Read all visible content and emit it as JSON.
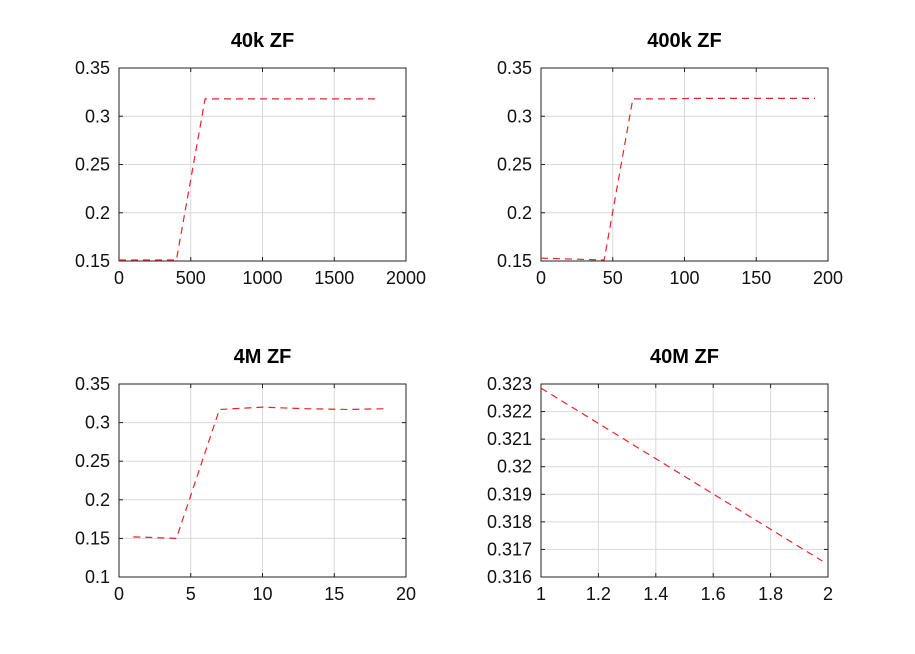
{
  "chart_data": [
    {
      "type": "line",
      "title": "40k ZF",
      "xlim": [
        0,
        2000
      ],
      "ylim": [
        0.15,
        0.35
      ],
      "xticks": [
        0,
        500,
        1000,
        1500,
        2000
      ],
      "xtick_labels": [
        "0",
        "500",
        "1000",
        "1500",
        "2000"
      ],
      "yticks": [
        0.15,
        0.2,
        0.25,
        0.3,
        0.35
      ],
      "ytick_labels": [
        "0.15",
        "0.2",
        "0.25",
        "0.3",
        "0.35"
      ],
      "grid": true,
      "series": [
        {
          "color": "#e8242b",
          "style": "dashed",
          "x": [
            0,
            400,
            600,
            800,
            1000,
            1200,
            1400,
            1600,
            1800
          ],
          "y": [
            0.151,
            0.151,
            0.318,
            0.318,
            0.318,
            0.318,
            0.318,
            0.318,
            0.318
          ]
        }
      ]
    },
    {
      "type": "line",
      "title": "400k ZF",
      "xlim": [
        0,
        200
      ],
      "ylim": [
        0.15,
        0.35
      ],
      "xticks": [
        0,
        50,
        100,
        150,
        200
      ],
      "xtick_labels": [
        "0",
        "50",
        "100",
        "150",
        "200"
      ],
      "yticks": [
        0.15,
        0.2,
        0.25,
        0.3,
        0.35
      ],
      "ytick_labels": [
        "0.15",
        "0.2",
        "0.25",
        "0.3",
        "0.35"
      ],
      "grid": true,
      "series": [
        {
          "color": "#e8242b",
          "style": "dashed",
          "x": [
            0,
            22,
            44,
            64,
            85,
            106,
            127,
            149,
            170,
            191
          ],
          "y": [
            0.153,
            0.152,
            0.151,
            0.318,
            0.318,
            0.3185,
            0.3185,
            0.3185,
            0.3185,
            0.3185
          ]
        }
      ]
    },
    {
      "type": "line",
      "title": "4M ZF",
      "xlim": [
        0,
        20
      ],
      "ylim": [
        0.1,
        0.35
      ],
      "xticks": [
        0,
        5,
        10,
        15,
        20
      ],
      "xtick_labels": [
        "0",
        "5",
        "10",
        "15",
        "20"
      ],
      "yticks": [
        0.1,
        0.15,
        0.2,
        0.25,
        0.3,
        0.35
      ],
      "ytick_labels": [
        "0.1",
        "0.15",
        "0.2",
        "0.25",
        "0.3",
        "0.35"
      ],
      "grid": true,
      "series": [
        {
          "color": "#e8242b",
          "style": "dashed",
          "x": [
            1,
            4,
            7,
            10,
            13,
            16,
            18.7
          ],
          "y": [
            0.152,
            0.15,
            0.317,
            0.32,
            0.318,
            0.317,
            0.318
          ]
        }
      ]
    },
    {
      "type": "line",
      "title": "40M ZF",
      "xlim": [
        1,
        2
      ],
      "ylim": [
        0.316,
        0.323
      ],
      "xticks": [
        1,
        1.2,
        1.4,
        1.6,
        1.8,
        2
      ],
      "xtick_labels": [
        "1",
        "1.2",
        "1.4",
        "1.6",
        "1.8",
        "2"
      ],
      "yticks": [
        0.316,
        0.317,
        0.318,
        0.319,
        0.32,
        0.321,
        0.322,
        0.323
      ],
      "ytick_labels": [
        "0.316",
        "0.317",
        "0.318",
        "0.319",
        "0.32",
        "0.321",
        "0.322",
        "0.323"
      ],
      "grid": true,
      "series": [
        {
          "color": "#e8242b",
          "style": "dashed",
          "x": [
            1,
            1.98
          ],
          "y": [
            0.32285,
            0.31658
          ]
        }
      ]
    }
  ]
}
